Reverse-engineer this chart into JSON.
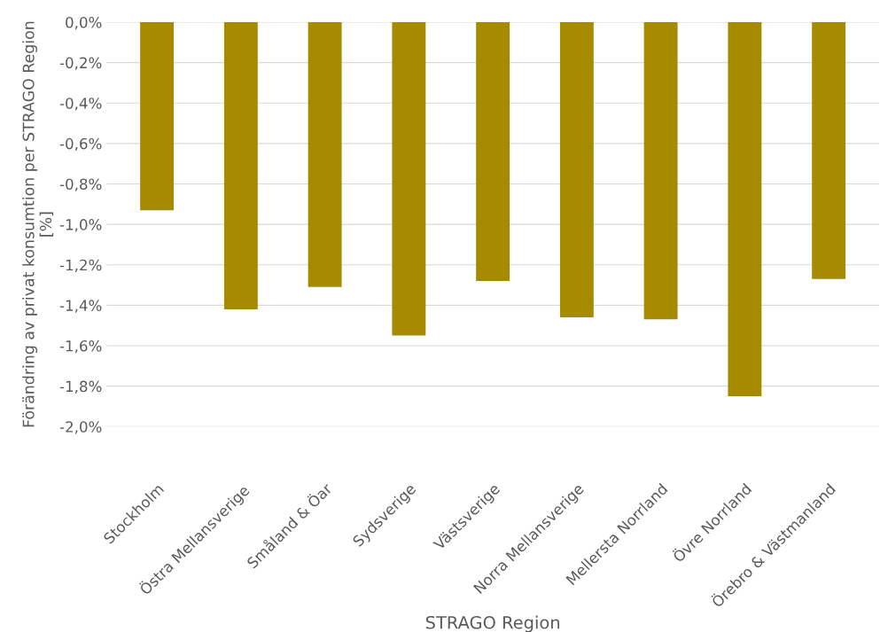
{
  "chart_data": {
    "type": "bar",
    "xlabel": "STRAGO Region",
    "ylabel": "Förändring av privat konsumtion per STRAGO Region\n[%]",
    "categories": [
      "Stockholm",
      "Östra Mellansverige",
      "Småland & Öar",
      "Sydsverige",
      "Västsverige",
      "Norra Mellansverige",
      "Mellersta Norrland",
      "Övre Norrland",
      "Örebro & Västmanland"
    ],
    "values": [
      -0.93,
      -1.42,
      -1.31,
      -1.55,
      -1.28,
      -1.46,
      -1.47,
      -1.85,
      -1.27
    ],
    "color": "#a68a00",
    "ylim": [
      -2.0,
      0.0
    ],
    "yticks": [
      {
        "value": 0.0,
        "label": "0,0%"
      },
      {
        "value": -0.2,
        "label": "-0,2%"
      },
      {
        "value": -0.4,
        "label": "-0,4%"
      },
      {
        "value": -0.6,
        "label": "-0,6%"
      },
      {
        "value": -0.8,
        "label": "-0,8%"
      },
      {
        "value": -1.0,
        "label": "-1,0%"
      },
      {
        "value": -1.2,
        "label": "-1,2%"
      },
      {
        "value": -1.4,
        "label": "-1,4%"
      },
      {
        "value": -1.6,
        "label": "-1,6%"
      },
      {
        "value": -1.8,
        "label": "-1,8%"
      },
      {
        "value": -2.0,
        "label": "-2,0%"
      }
    ],
    "grid": "y"
  }
}
